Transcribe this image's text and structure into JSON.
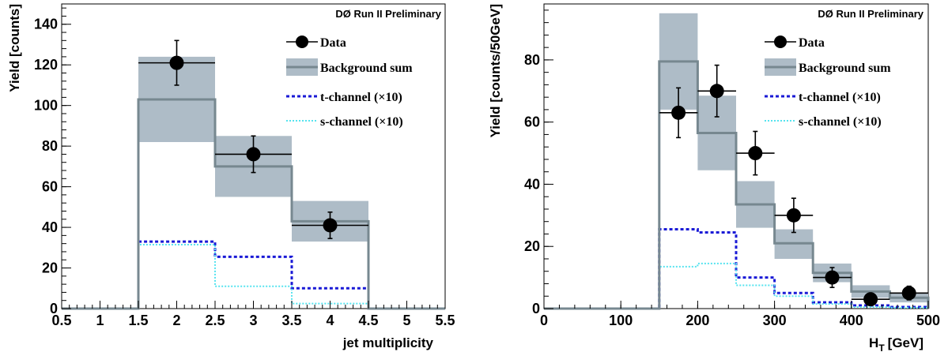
{
  "chart_data": [
    {
      "type": "bar",
      "preliminary_label": "DØ Run II Preliminary",
      "xlabel": "jet multiplicity",
      "ylabel": "Yield [counts]",
      "xlim": [
        0.5,
        5.5
      ],
      "ylim": [
        0,
        150
      ],
      "xticks": [
        "0.5",
        "1",
        "1.5",
        "2",
        "2.5",
        "3",
        "3.5",
        "4",
        "4.5",
        "5",
        "5.5"
      ],
      "yticks": [
        "0",
        "20",
        "40",
        "60",
        "80",
        "100",
        "120",
        "140"
      ],
      "bins": [
        [
          0.5,
          1.5
        ],
        [
          1.5,
          2.5
        ],
        [
          2.5,
          3.5
        ],
        [
          3.5,
          4.5
        ],
        [
          4.5,
          5.5
        ]
      ],
      "data": [
        {
          "x": 2,
          "y": 121,
          "err_low": 11,
          "err_high": 11,
          "xerr": 0.5
        },
        {
          "x": 3,
          "y": 76,
          "err_low": 9,
          "err_high": 9,
          "xerr": 0.5
        },
        {
          "x": 4,
          "y": 41,
          "err_low": 6.5,
          "err_high": 6.5,
          "xerr": 0.5
        }
      ],
      "background": [
        0,
        103,
        70,
        43,
        0
      ],
      "background_band": [
        [
          0,
          0
        ],
        [
          82,
          124
        ],
        [
          55,
          85
        ],
        [
          33,
          53
        ],
        [
          0,
          0
        ]
      ],
      "t_channel": [
        0,
        33,
        25.5,
        10,
        0
      ],
      "s_channel": [
        0,
        31.5,
        11,
        2.5,
        0
      ],
      "legend": {
        "data": "Data",
        "background": "Background sum",
        "t_channel": "t-channel  (×10)",
        "s_channel": "s-channel (×10)",
        "position": "top-right"
      }
    },
    {
      "type": "bar",
      "preliminary_label": "DØ Run II Preliminary",
      "xlabel": "H",
      "xlabel_sub": "T",
      "xlabel_unit": "[GeV]",
      "ylabel": "Yield [counts/50GeV]",
      "xlim": [
        0,
        500
      ],
      "ylim": [
        0,
        98
      ],
      "xticks": [
        "0",
        "100",
        "200",
        "300",
        "400",
        "500"
      ],
      "yticks": [
        "0",
        "20",
        "40",
        "60",
        "80"
      ],
      "bin_width": 50,
      "bins_start": [
        0,
        50,
        100,
        150,
        200,
        250,
        300,
        350,
        400,
        450
      ],
      "data": [
        {
          "x": 175,
          "y": 63,
          "err_low": 8,
          "err_high": 8,
          "xerr": 25
        },
        {
          "x": 225,
          "y": 70,
          "err_low": 8.3,
          "err_high": 8.3,
          "xerr": 25
        },
        {
          "x": 275,
          "y": 50,
          "err_low": 7,
          "err_high": 7,
          "xerr": 25
        },
        {
          "x": 325,
          "y": 30,
          "err_low": 5.5,
          "err_high": 5.5,
          "xerr": 25
        },
        {
          "x": 375,
          "y": 10,
          "err_low": 3.2,
          "err_high": 3.2,
          "xerr": 25
        },
        {
          "x": 425,
          "y": 3,
          "err_low": 1.7,
          "err_high": 1.7,
          "xerr": 25
        },
        {
          "x": 475,
          "y": 5,
          "err_low": 2.2,
          "err_high": 2.2,
          "xerr": 25
        }
      ],
      "background": [
        0,
        0,
        0,
        79.5,
        56.5,
        33.5,
        21,
        11.5,
        5.5,
        3.5
      ],
      "background_band": [
        [
          0,
          0
        ],
        [
          0,
          0
        ],
        [
          0,
          0
        ],
        [
          64,
          95
        ],
        [
          44.5,
          68.5
        ],
        [
          26,
          41
        ],
        [
          16,
          25.5
        ],
        [
          8.5,
          14.5
        ],
        [
          3.5,
          7.5
        ],
        [
          2,
          5
        ]
      ],
      "t_channel": [
        0,
        0,
        0,
        25.5,
        24.5,
        10,
        5,
        2,
        1,
        0.5
      ],
      "s_channel": [
        0,
        0,
        0,
        13.5,
        14.5,
        7.5,
        4,
        1.5,
        0.5,
        0.3
      ],
      "legend": {
        "data": "Data",
        "background": "Background sum",
        "t_channel": "t-channel  (×10)",
        "s_channel": "s-channel (×10)",
        "position": "top-right"
      }
    }
  ]
}
